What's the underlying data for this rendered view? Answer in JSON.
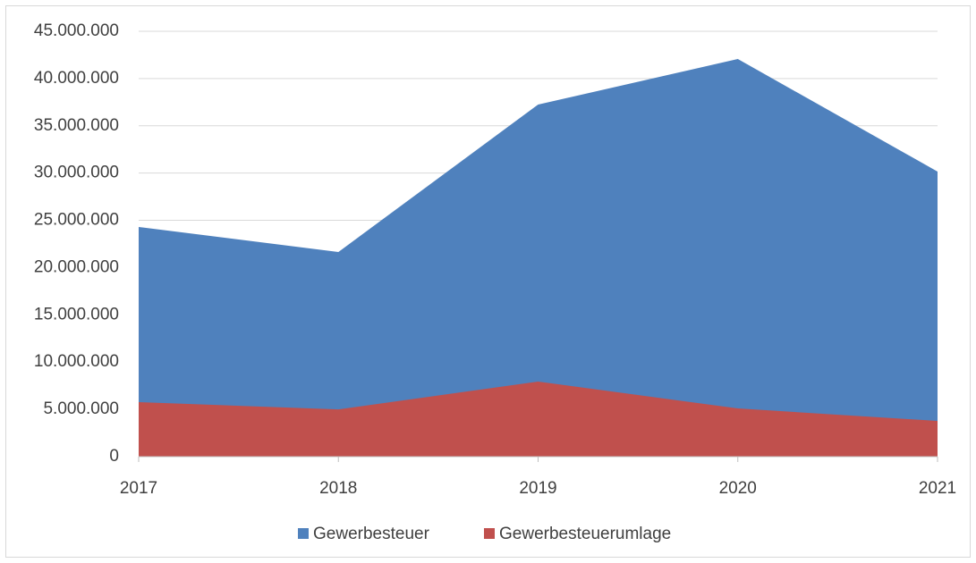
{
  "chart_data": {
    "type": "area",
    "categories": [
      "2017",
      "2018",
      "2019",
      "2020",
      "2021"
    ],
    "series": [
      {
        "name": "Gewerbesteuer",
        "color": "#4f81bd",
        "values": [
          24300000,
          21650000,
          37250000,
          42070000,
          30160000
        ]
      },
      {
        "name": "Gewerbesteuerumlage",
        "color": "#c0504d",
        "values": [
          5770000,
          5000000,
          7940000,
          5100000,
          3780000
        ]
      }
    ],
    "ylim": [
      0,
      45000000
    ],
    "yticks": [
      0,
      {
        "value": 5000000,
        "label": "5.000.000"
      },
      {
        "value": 10000000,
        "label": "10.000.000"
      },
      {
        "value": 15000000,
        "label": "15.000.000"
      },
      {
        "value": 20000000,
        "label": "20.000.000"
      },
      {
        "value": 25000000,
        "label": "25.000.000"
      },
      {
        "value": 30000000,
        "label": "30.000.000"
      },
      {
        "value": 35000000,
        "label": "35.000.000"
      },
      {
        "value": 40000000,
        "label": "40.000.000"
      },
      {
        "value": 45000000,
        "label": "45.000.000"
      }
    ],
    "grid": true,
    "legend": "bottom"
  }
}
